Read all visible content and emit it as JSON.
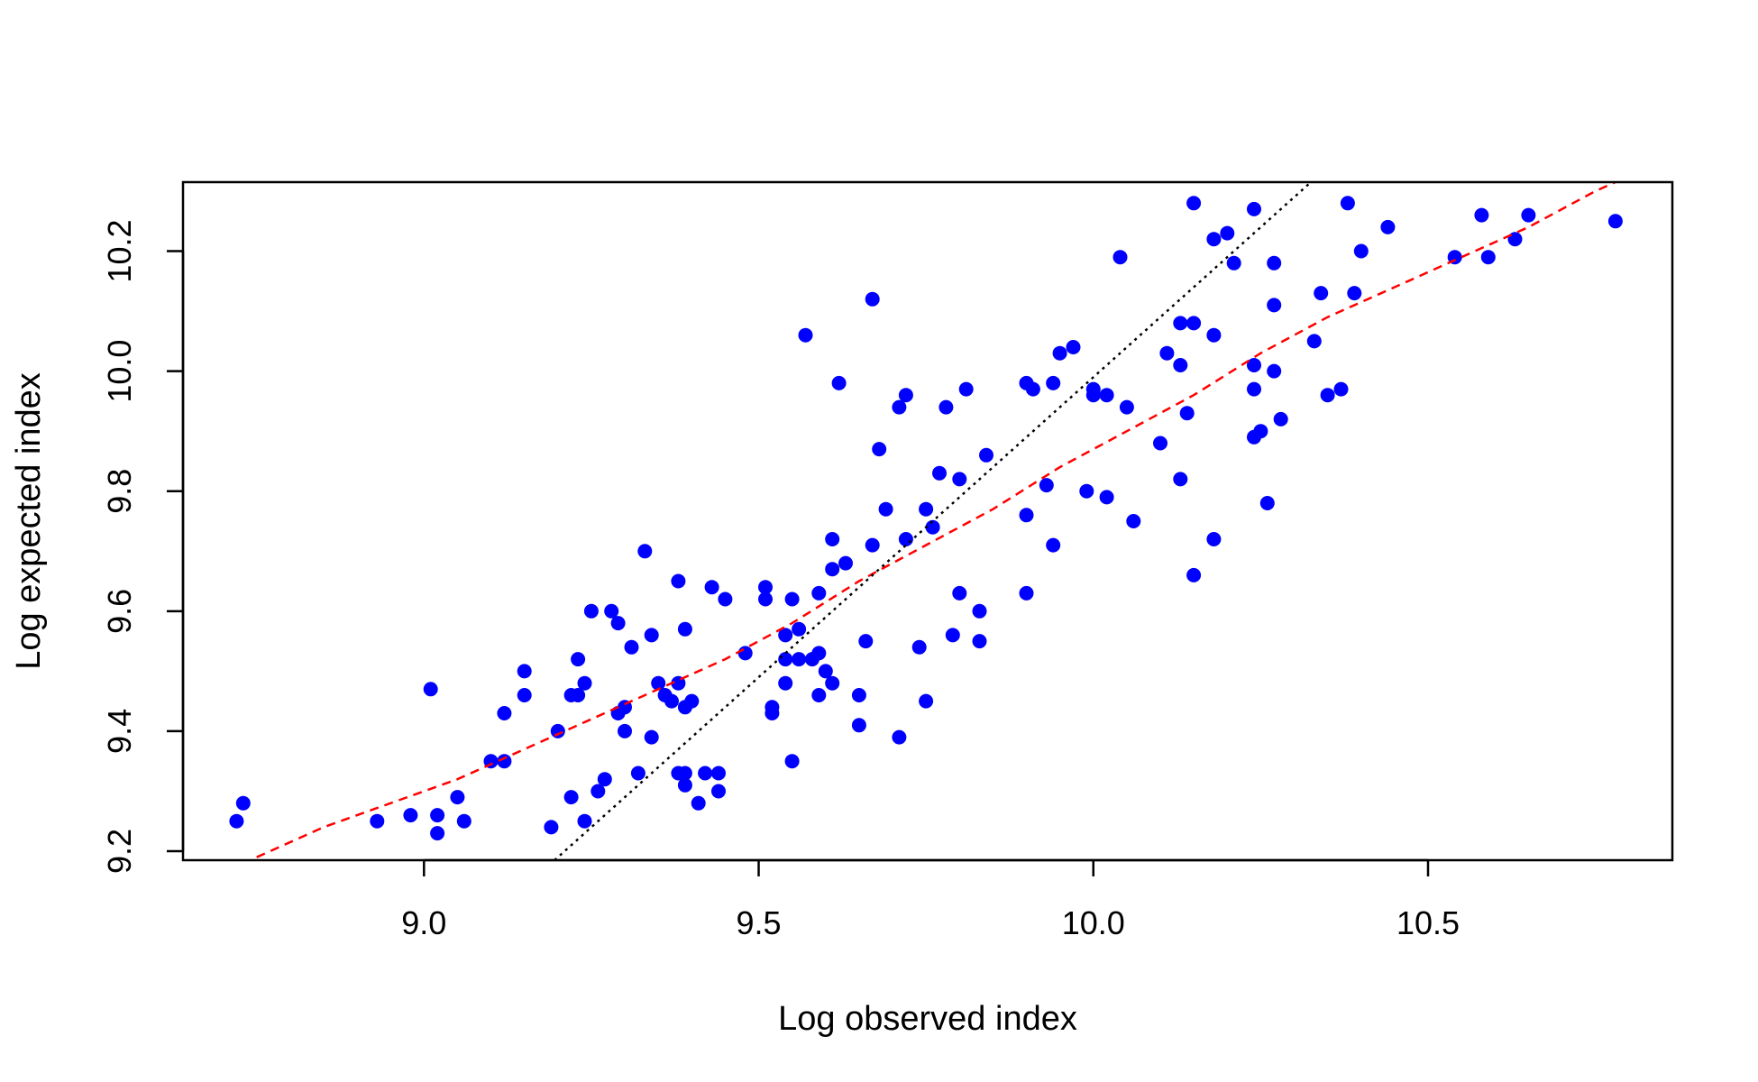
{
  "chart_data": {
    "type": "scatter",
    "title": "",
    "xlabel": "Log observed index",
    "ylabel": "Log expected index",
    "xlim": [
      8.64,
      10.865
    ],
    "ylim": [
      9.185,
      10.315
    ],
    "xticks": [
      9.0,
      9.5,
      10.0,
      10.5
    ],
    "xtick_labels": [
      "9.0",
      "9.5",
      "10.0",
      "10.5"
    ],
    "yticks": [
      9.2,
      9.4,
      9.6,
      9.8,
      10.0,
      10.2
    ],
    "ytick_labels": [
      "9.2",
      "9.4",
      "9.6",
      "9.8",
      "10.0",
      "10.2"
    ],
    "grid": false,
    "colors": {
      "points": "#0000ff",
      "fit_line": "#ff0000",
      "identity_line": "#000000"
    },
    "series": [
      {
        "type": "scatter",
        "points": [
          [
            8.72,
            9.25
          ],
          [
            8.73,
            9.28
          ],
          [
            8.93,
            9.25
          ],
          [
            8.98,
            9.26
          ],
          [
            9.01,
            9.47
          ],
          [
            9.02,
            9.23
          ],
          [
            9.02,
            9.26
          ],
          [
            9.05,
            9.29
          ],
          [
            9.06,
            9.25
          ],
          [
            9.1,
            9.35
          ],
          [
            9.12,
            9.43
          ],
          [
            9.12,
            9.35
          ],
          [
            9.15,
            9.46
          ],
          [
            9.15,
            9.5
          ],
          [
            9.19,
            9.24
          ],
          [
            9.2,
            9.4
          ],
          [
            9.22,
            9.29
          ],
          [
            9.22,
            9.46
          ],
          [
            9.23,
            9.46
          ],
          [
            9.24,
            9.25
          ],
          [
            9.23,
            9.52
          ],
          [
            9.24,
            9.48
          ],
          [
            9.25,
            9.6
          ],
          [
            9.26,
            9.3
          ],
          [
            9.27,
            9.32
          ],
          [
            9.28,
            9.6
          ],
          [
            9.29,
            9.58
          ],
          [
            9.29,
            9.43
          ],
          [
            9.3,
            9.4
          ],
          [
            9.3,
            9.44
          ],
          [
            9.31,
            9.54
          ],
          [
            9.32,
            9.33
          ],
          [
            9.33,
            9.7
          ],
          [
            9.34,
            9.56
          ],
          [
            9.34,
            9.39
          ],
          [
            9.35,
            9.48
          ],
          [
            9.36,
            9.46
          ],
          [
            9.37,
            9.45
          ],
          [
            9.38,
            9.65
          ],
          [
            9.38,
            9.33
          ],
          [
            9.38,
            9.48
          ],
          [
            9.39,
            9.33
          ],
          [
            9.39,
            9.31
          ],
          [
            9.39,
            9.57
          ],
          [
            9.39,
            9.44
          ],
          [
            9.4,
            9.45
          ],
          [
            9.41,
            9.28
          ],
          [
            9.42,
            9.33
          ],
          [
            9.43,
            9.64
          ],
          [
            9.44,
            9.33
          ],
          [
            9.44,
            9.3
          ],
          [
            9.45,
            9.62
          ],
          [
            9.48,
            9.53
          ],
          [
            9.51,
            9.64
          ],
          [
            9.51,
            9.62
          ],
          [
            9.52,
            9.43
          ],
          [
            9.52,
            9.44
          ],
          [
            9.54,
            9.56
          ],
          [
            9.54,
            9.52
          ],
          [
            9.54,
            9.48
          ],
          [
            9.55,
            9.62
          ],
          [
            9.55,
            9.35
          ],
          [
            9.56,
            9.57
          ],
          [
            9.56,
            9.52
          ],
          [
            9.57,
            10.06
          ],
          [
            9.58,
            9.52
          ],
          [
            9.59,
            9.53
          ],
          [
            9.59,
            9.63
          ],
          [
            9.59,
            9.46
          ],
          [
            9.6,
            9.5
          ],
          [
            9.61,
            9.48
          ],
          [
            9.61,
            9.72
          ],
          [
            9.61,
            9.67
          ],
          [
            9.62,
            9.98
          ],
          [
            9.63,
            9.68
          ],
          [
            9.65,
            9.41
          ],
          [
            9.65,
            9.46
          ],
          [
            9.66,
            9.55
          ],
          [
            9.67,
            10.12
          ],
          [
            9.67,
            9.71
          ],
          [
            9.68,
            9.87
          ],
          [
            9.69,
            9.77
          ],
          [
            9.71,
            9.94
          ],
          [
            9.71,
            9.39
          ],
          [
            9.72,
            9.96
          ],
          [
            9.72,
            9.72
          ],
          [
            9.74,
            9.54
          ],
          [
            9.75,
            9.77
          ],
          [
            9.75,
            9.45
          ],
          [
            9.76,
            9.74
          ],
          [
            9.77,
            9.83
          ],
          [
            9.78,
            9.94
          ],
          [
            9.79,
            9.56
          ],
          [
            9.8,
            9.82
          ],
          [
            9.8,
            9.63
          ],
          [
            9.81,
            9.97
          ],
          [
            9.83,
            9.55
          ],
          [
            9.83,
            9.6
          ],
          [
            9.84,
            9.86
          ],
          [
            9.9,
            9.98
          ],
          [
            9.9,
            9.76
          ],
          [
            9.9,
            9.63
          ],
          [
            9.91,
            9.97
          ],
          [
            9.93,
            9.81
          ],
          [
            9.94,
            9.98
          ],
          [
            9.94,
            9.71
          ],
          [
            9.95,
            10.03
          ],
          [
            9.97,
            10.04
          ],
          [
            9.99,
            9.8
          ],
          [
            10.0,
            9.97
          ],
          [
            10.0,
            9.96
          ],
          [
            10.02,
            9.96
          ],
          [
            10.02,
            9.79
          ],
          [
            10.04,
            10.19
          ],
          [
            10.05,
            9.94
          ],
          [
            10.06,
            9.75
          ],
          [
            10.1,
            9.88
          ],
          [
            10.11,
            10.03
          ],
          [
            10.13,
            10.08
          ],
          [
            10.13,
            10.01
          ],
          [
            10.13,
            9.82
          ],
          [
            10.14,
            9.93
          ],
          [
            10.15,
            10.28
          ],
          [
            10.15,
            10.08
          ],
          [
            10.15,
            9.66
          ],
          [
            10.18,
            10.22
          ],
          [
            10.18,
            9.72
          ],
          [
            10.18,
            10.06
          ],
          [
            10.2,
            10.23
          ],
          [
            10.21,
            10.18
          ],
          [
            10.24,
            10.27
          ],
          [
            10.24,
            10.01
          ],
          [
            10.24,
            9.97
          ],
          [
            10.24,
            9.89
          ],
          [
            10.25,
            9.9
          ],
          [
            10.26,
            9.78
          ],
          [
            10.27,
            10.18
          ],
          [
            10.27,
            10.11
          ],
          [
            10.27,
            10.0
          ],
          [
            10.28,
            9.92
          ],
          [
            10.33,
            10.05
          ],
          [
            10.34,
            10.13
          ],
          [
            10.35,
            9.96
          ],
          [
            10.37,
            9.97
          ],
          [
            10.38,
            10.28
          ],
          [
            10.39,
            10.13
          ],
          [
            10.4,
            10.2
          ],
          [
            10.44,
            10.24
          ],
          [
            10.54,
            10.19
          ],
          [
            10.58,
            10.26
          ],
          [
            10.59,
            10.19
          ],
          [
            10.63,
            10.22
          ],
          [
            10.65,
            10.26
          ],
          [
            10.78,
            10.25
          ]
        ]
      },
      {
        "type": "line",
        "style": "dashed",
        "points": [
          [
            8.75,
            9.19
          ],
          [
            8.85,
            9.24
          ],
          [
            8.95,
            9.28
          ],
          [
            9.05,
            9.32
          ],
          [
            9.15,
            9.37
          ],
          [
            9.25,
            9.42
          ],
          [
            9.35,
            9.47
          ],
          [
            9.45,
            9.52
          ],
          [
            9.55,
            9.58
          ],
          [
            9.65,
            9.65
          ],
          [
            9.75,
            9.71
          ],
          [
            9.85,
            9.77
          ],
          [
            9.95,
            9.84
          ],
          [
            10.05,
            9.9
          ],
          [
            10.15,
            9.96
          ],
          [
            10.25,
            10.03
          ],
          [
            10.35,
            10.09
          ],
          [
            10.45,
            10.14
          ],
          [
            10.55,
            10.19
          ],
          [
            10.65,
            10.24
          ],
          [
            10.75,
            10.3
          ],
          [
            10.78,
            10.315
          ]
        ]
      },
      {
        "type": "line",
        "style": "dotted",
        "points": [
          [
            9.195,
            9.185
          ],
          [
            10.325,
            10.315
          ]
        ]
      }
    ]
  }
}
